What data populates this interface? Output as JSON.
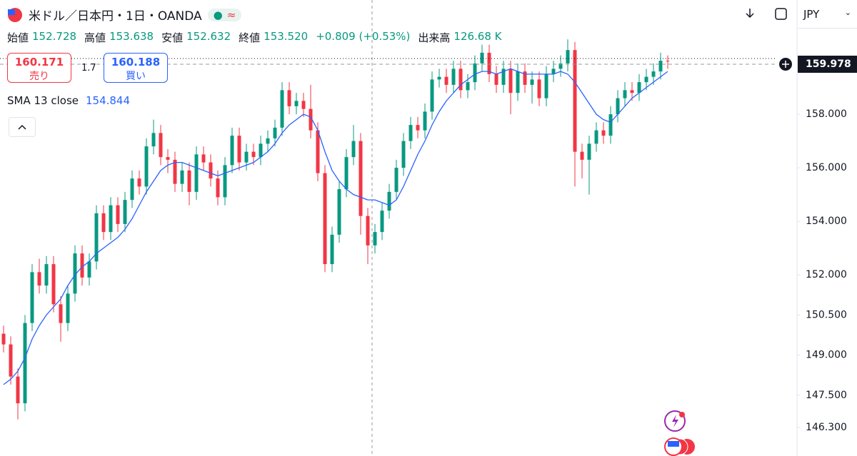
{
  "chart_data": {
    "type": "candlestick",
    "title": "米ドル／日本円・1日・OANDA",
    "ohlc_readout": [
      {
        "label": "始値",
        "value": "152.728"
      },
      {
        "label": "高値",
        "value": "153.638"
      },
      {
        "label": "安値",
        "value": "152.632"
      },
      {
        "label": "終値",
        "value": "153.520"
      },
      {
        "label": "",
        "value": "+0.809 (+0.53%)"
      },
      {
        "label": "出来高",
        "value": "126.68 K"
      }
    ],
    "sell_price": "160.171",
    "sell_label": "売り",
    "spread": "1.7",
    "buy_price": "160.188",
    "buy_label": "買い",
    "sma_readout": "154.844",
    "currency": "JPY",
    "last_price_label": "159.978",
    "up_color": "#089981",
    "down_color": "#f23645",
    "ylim": [
      145.23,
      162.27
    ],
    "yticks": [
      {
        "value": 158,
        "label": "158.000"
      },
      {
        "value": 156,
        "label": "156.000"
      },
      {
        "value": 154,
        "label": "154.000"
      },
      {
        "value": 152,
        "label": "152.000"
      },
      {
        "value": 150.5,
        "label": "150.500"
      },
      {
        "value": 149,
        "label": "149.000"
      },
      {
        "value": 147.5,
        "label": "147.500"
      },
      {
        "value": 146.3,
        "label": "146.300"
      }
    ],
    "open": [
      149.8,
      149.4,
      148.2,
      147.2,
      150.2,
      152.1,
      151.6,
      152.4,
      150.9,
      150.2,
      151.3,
      152.8,
      151.9,
      152.5,
      154.3,
      153.6,
      154.6,
      153.9,
      154.8,
      155.6,
      155.3,
      156.8,
      157.3,
      156.4,
      156.3,
      155.4,
      155.9,
      155.1,
      156.5,
      156.2,
      155.6,
      154.9,
      156.1,
      157.2,
      156.2,
      156.6,
      156.4,
      156.9,
      157.1,
      157.5,
      158.9,
      158.3,
      158.5,
      158.2,
      157.4,
      155.8,
      152.4,
      153.5,
      155.2,
      156.4,
      157.0,
      154.2,
      153.1,
      153.6,
      154.4,
      155.1,
      156.0,
      157.0,
      157.6,
      157.4,
      158.1,
      159.3,
      159.4,
      159.1,
      159.7,
      158.9,
      159.2,
      159.9,
      160.3,
      159.5,
      159.1,
      159.7,
      158.8,
      159.6,
      159.1,
      159.3,
      158.6,
      159.5,
      159.7,
      159.9,
      160.4,
      156.6,
      156.3,
      156.9,
      157.4,
      157.2,
      158.0,
      158.6,
      158.9,
      158.8,
      159.2,
      159.4,
      159.6,
      160.0
    ],
    "high": [
      150.1,
      149.7,
      148.5,
      150.5,
      152.4,
      152.6,
      152.7,
      152.7,
      151.2,
      151.6,
      153.1,
      153.1,
      152.8,
      154.6,
      154.6,
      154.9,
      154.9,
      155.1,
      155.9,
      155.9,
      157.1,
      157.8,
      157.6,
      156.7,
      156.6,
      156.2,
      156.2,
      156.8,
      156.8,
      156.5,
      155.9,
      156.4,
      157.5,
      157.5,
      156.9,
      156.9,
      157.2,
      157.4,
      157.8,
      159.2,
      159.2,
      158.8,
      158.8,
      159.1,
      157.7,
      156.1,
      153.8,
      155.5,
      156.7,
      157.6,
      157.3,
      154.5,
      153.9,
      154.7,
      155.4,
      156.3,
      157.3,
      157.9,
      157.9,
      158.4,
      159.6,
      159.7,
      159.7,
      160.0,
      160.0,
      159.5,
      160.2,
      160.6,
      160.6,
      159.8,
      160.0,
      160.0,
      159.9,
      159.9,
      159.6,
      159.6,
      159.8,
      160.0,
      160.2,
      160.8,
      160.7,
      156.9,
      157.2,
      157.7,
      157.7,
      158.3,
      158.9,
      159.2,
      159.2,
      159.5,
      159.7,
      159.9,
      160.3,
      160.2
    ],
    "low": [
      149.1,
      147.9,
      146.6,
      146.9,
      149.9,
      151.3,
      151.3,
      150.6,
      149.5,
      149.9,
      151.0,
      151.6,
      151.6,
      152.2,
      153.3,
      153.3,
      153.6,
      153.6,
      154.5,
      155.0,
      155.0,
      156.5,
      156.1,
      155.8,
      155.1,
      155.1,
      154.6,
      154.8,
      155.9,
      155.3,
      154.6,
      154.6,
      155.8,
      155.9,
      155.9,
      156.1,
      156.1,
      156.6,
      156.8,
      157.2,
      158.0,
      158.0,
      157.9,
      157.1,
      155.5,
      152.1,
      152.1,
      153.2,
      154.9,
      156.1,
      153.5,
      152.4,
      152.8,
      153.3,
      154.1,
      154.8,
      155.7,
      156.7,
      157.1,
      157.1,
      157.8,
      159.0,
      158.8,
      158.8,
      158.6,
      158.6,
      158.9,
      159.6,
      159.2,
      158.8,
      158.8,
      158.0,
      158.5,
      158.8,
      158.4,
      158.3,
      158.3,
      159.2,
      159.4,
      159.6,
      155.3,
      155.6,
      155.0,
      156.6,
      156.9,
      156.9,
      157.7,
      158.3,
      158.5,
      158.5,
      158.9,
      159.1,
      159.3,
      159.7
    ],
    "close": [
      149.4,
      148.2,
      147.2,
      150.2,
      152.1,
      151.6,
      152.4,
      150.9,
      150.2,
      151.3,
      152.8,
      151.9,
      152.5,
      154.3,
      153.6,
      154.6,
      153.9,
      154.8,
      155.6,
      155.3,
      156.8,
      157.3,
      156.4,
      156.3,
      155.4,
      155.9,
      155.1,
      156.5,
      156.2,
      155.6,
      154.9,
      156.1,
      157.2,
      156.2,
      156.6,
      156.4,
      156.9,
      157.1,
      157.5,
      158.9,
      158.3,
      158.5,
      158.2,
      157.4,
      155.8,
      152.4,
      153.5,
      155.2,
      156.4,
      157.0,
      154.2,
      153.1,
      153.6,
      154.4,
      155.1,
      156.0,
      157.0,
      157.6,
      157.4,
      158.1,
      159.3,
      159.4,
      159.1,
      159.7,
      158.9,
      159.2,
      159.9,
      160.3,
      159.5,
      159.1,
      159.7,
      158.8,
      159.6,
      159.1,
      159.3,
      158.6,
      159.5,
      159.7,
      159.9,
      160.4,
      156.6,
      156.3,
      156.9,
      157.4,
      157.2,
      158.0,
      158.6,
      158.9,
      158.8,
      159.2,
      159.4,
      159.6,
      160.0,
      159.98
    ],
    "series": [
      {
        "name": "SMA 13 close",
        "color": "#2962ff",
        "values": [
          147.9,
          148.1,
          148.4,
          148.9,
          149.6,
          150.1,
          150.5,
          150.8,
          151.1,
          151.6,
          152.0,
          152.3,
          152.5,
          152.8,
          153.0,
          153.2,
          153.4,
          153.7,
          154.1,
          154.6,
          155.1,
          155.5,
          155.9,
          156.1,
          156.2,
          156.2,
          156.1,
          156.0,
          155.9,
          155.8,
          155.7,
          155.8,
          155.9,
          156.0,
          156.1,
          156.2,
          156.4,
          156.6,
          156.9,
          157.3,
          157.6,
          157.8,
          158.0,
          157.9,
          157.4,
          156.6,
          155.9,
          155.5,
          155.2,
          155.0,
          154.9,
          154.8,
          154.8,
          154.7,
          154.6,
          154.8,
          155.3,
          155.9,
          156.5,
          157.0,
          157.6,
          158.1,
          158.5,
          158.8,
          159.1,
          159.3,
          159.5,
          159.6,
          159.6,
          159.5,
          159.6,
          159.7,
          159.6,
          159.5,
          159.5,
          159.5,
          159.5,
          159.5,
          159.6,
          159.5,
          159.2,
          158.8,
          158.4,
          158.0,
          157.8,
          157.7,
          158.0,
          158.3,
          158.6,
          158.8,
          159.0,
          159.2,
          159.4,
          159.6
        ]
      }
    ]
  }
}
